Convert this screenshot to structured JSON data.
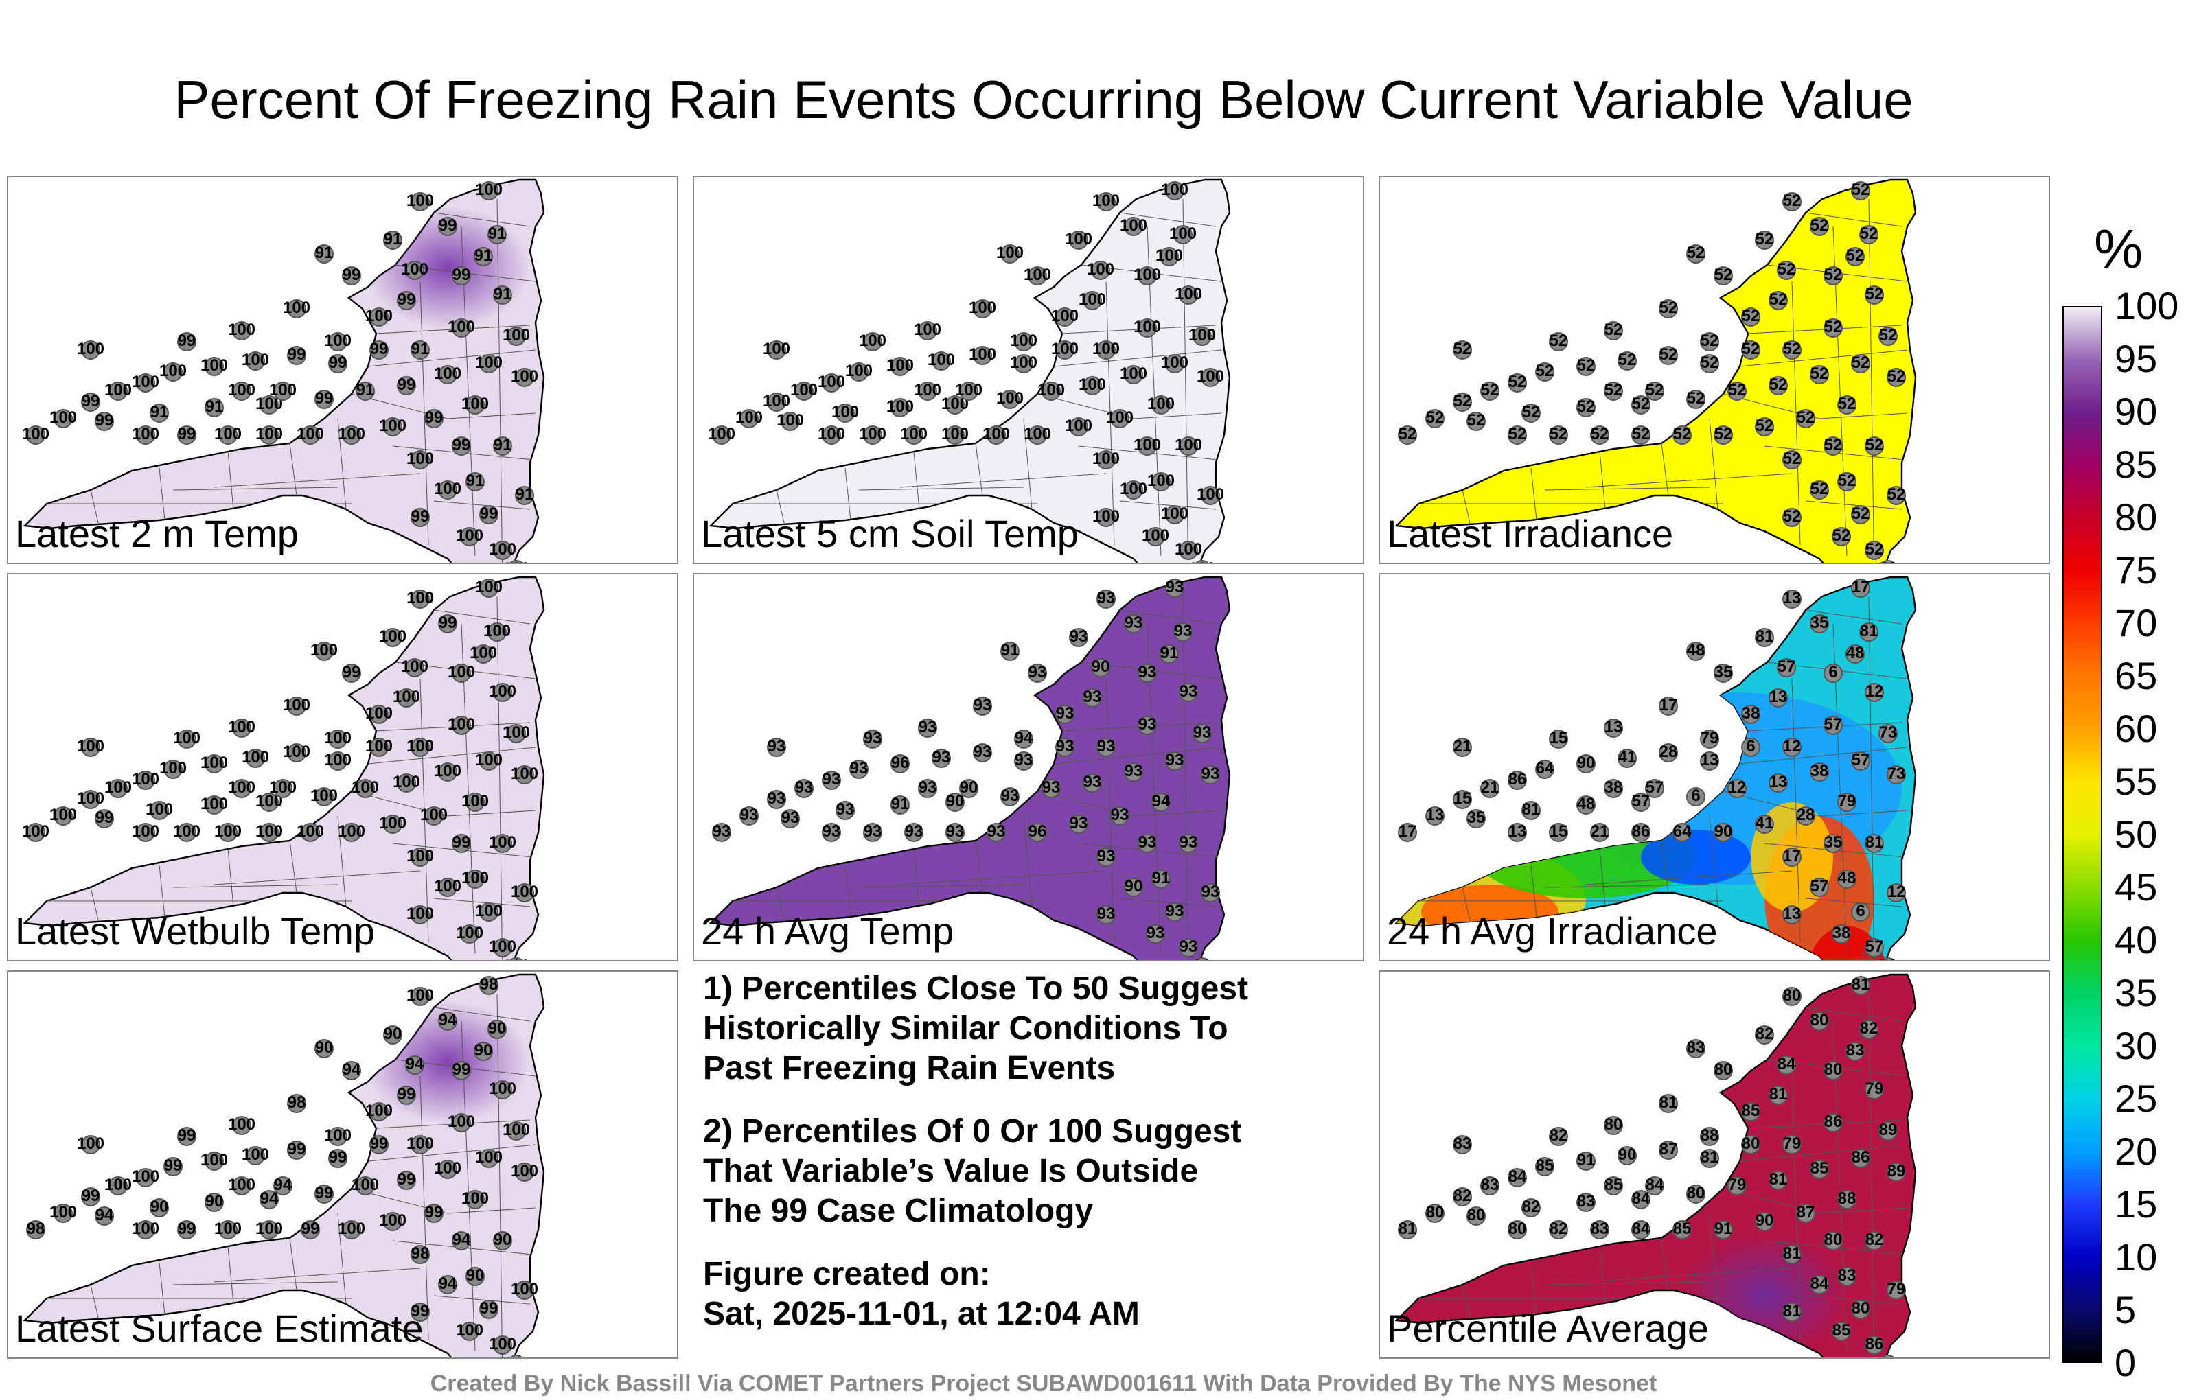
{
  "title": "Percent Of Freezing Rain Events Occurring Below Current Variable Value",
  "panels": [
    {
      "label": "Latest 2 m Temp",
      "fill": "#e6daec",
      "blob": "#7e3ab0",
      "station_values": [
        "100",
        "100",
        "99",
        "91",
        "91",
        "100",
        "99",
        "91",
        "99",
        "100",
        "100",
        "100",
        "100",
        "99",
        "100",
        "100",
        "100",
        "100",
        "100",
        "99"
      ]
    },
    {
      "label": "Latest 5 cm Soil Temp",
      "fill": "#f2eef5",
      "blob": "",
      "station_values": [
        "100",
        "100",
        "100",
        "100",
        "100",
        "100",
        "100",
        "100",
        "100",
        "100",
        "100",
        "100",
        "100",
        "100",
        "100",
        "100",
        "100",
        "100",
        "100",
        "100"
      ]
    },
    {
      "label": "Latest Irradiance",
      "fill": "#ffff00",
      "blob": "",
      "station_values": [
        "52",
        "52",
        "52",
        "52",
        "52",
        "52",
        "52",
        "52",
        "52",
        "52",
        "52",
        "52",
        "52",
        "52",
        "52",
        "52",
        "52",
        "52",
        "52",
        "52"
      ]
    },
    {
      "label": "Latest Wetbulb Temp",
      "fill": "#e6daec",
      "blob": "",
      "station_values": [
        "100",
        "100",
        "99",
        "100",
        "100",
        "100",
        "100",
        "100",
        "100",
        "100",
        "100",
        "100",
        "100",
        "100",
        "100",
        "100",
        "100",
        "100",
        "100",
        "100"
      ]
    },
    {
      "label": "24 h Avg Temp",
      "fill": "#7d46a8",
      "blob": "",
      "station_values": [
        "93",
        "93",
        "93",
        "93",
        "91",
        "90",
        "93",
        "93",
        "93",
        "93",
        "93",
        "93",
        "94",
        "93",
        "93",
        "96",
        "93",
        "93",
        "93",
        "93"
      ]
    },
    {
      "label": "24 h Avg Irradiance",
      "fill": "#18c8dc",
      "blob": "",
      "station_values": [
        "13",
        "17",
        "35",
        "81",
        "48",
        "57",
        "6",
        "12",
        "13",
        "38",
        "57",
        "73",
        "79",
        "28",
        "41",
        "90",
        "64",
        "86",
        "21",
        "15"
      ]
    },
    {
      "label": "Latest Surface Estimate",
      "fill": "#e6daec",
      "blob": "#7e3ab0",
      "station_values": [
        "100",
        "98",
        "94",
        "90",
        "90",
        "94",
        "99",
        "100",
        "99",
        "100",
        "100",
        "100",
        "100",
        "99",
        "100",
        "100",
        "99",
        "100",
        "100",
        "99"
      ]
    },
    {
      "label": "Percentile Average",
      "fill": "#b41446",
      "blob": "#6e2e9e",
      "station_values": [
        "80",
        "81",
        "80",
        "82",
        "83",
        "84",
        "80",
        "79",
        "81",
        "85",
        "86",
        "89",
        "88",
        "87",
        "90",
        "91",
        "85",
        "84",
        "83",
        "82"
      ]
    }
  ],
  "notes": {
    "note1": [
      "1) Percentiles Close To 50 Suggest",
      "Historically Similar Conditions To",
      "Past Freezing Rain Events"
    ],
    "note2": [
      "2) Percentiles Of 0 Or 100 Suggest",
      "That Variable’s Value Is Outside",
      "The 99 Case Climatology"
    ],
    "created": [
      "Figure created on:",
      "Sat, 2025-11-01, at 12:04 AM"
    ]
  },
  "colorbar": {
    "unit": "%",
    "ticks": [
      "100",
      "95",
      "90",
      "85",
      "80",
      "75",
      "70",
      "65",
      "60",
      "55",
      "50",
      "45",
      "40",
      "35",
      "30",
      "25",
      "20",
      "15",
      "10",
      "5",
      "0"
    ]
  },
  "footer": "Created By Nick Bassill Via COMET Partners Project SUBAWD001611 With Data Provided By The NYS Mesonet"
}
